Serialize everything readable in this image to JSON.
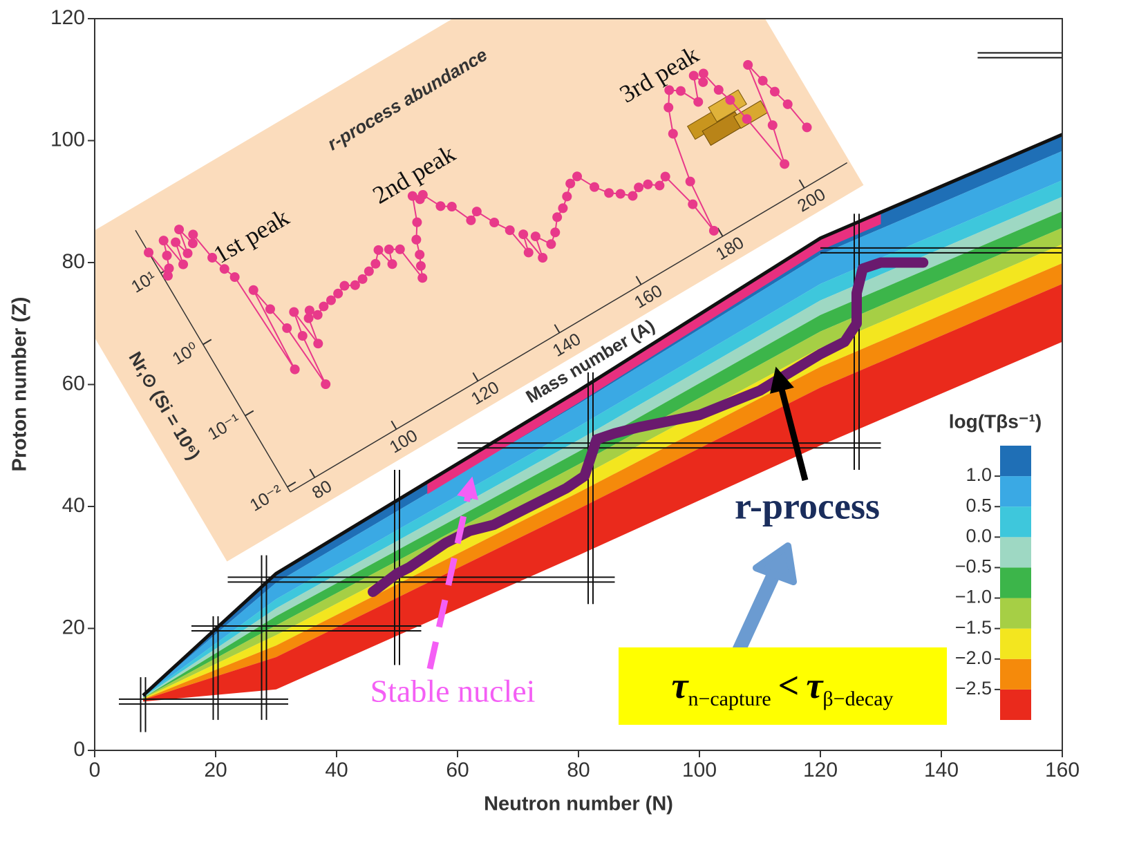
{
  "chart_data": {
    "type": "nuclide-chart",
    "xlabel": "Neutron number (N)",
    "ylabel": "Proton number (Z)",
    "xlim": [
      0,
      160
    ],
    "ylim": [
      0,
      120
    ],
    "xticks": [
      0,
      20,
      40,
      60,
      80,
      100,
      120,
      140,
      160
    ],
    "yticks": [
      0,
      20,
      40,
      60,
      80,
      100,
      120
    ],
    "regions": [
      {
        "color": "#1f6fb6",
        "N": [
          8,
          30,
          80,
          120,
          160,
          160,
          120,
          80,
          30,
          8
        ],
        "Z": [
          9,
          29,
          59,
          84,
          101,
          98.3,
          81.3,
          56.8,
          27.5,
          8.9
        ]
      },
      {
        "color": "#3aa9e4",
        "N": [
          8,
          30,
          80,
          120,
          160,
          160,
          120,
          80,
          30,
          8
        ],
        "Z": [
          8.9,
          27.5,
          56.8,
          81.3,
          98.3,
          93.5,
          76.5,
          53.1,
          24.8,
          8.8
        ]
      },
      {
        "color": "#3ec7dc",
        "N": [
          8,
          30,
          80,
          120,
          160,
          160,
          120,
          80,
          30,
          8
        ],
        "Z": [
          8.8,
          24.8,
          53.1,
          76.5,
          93.5,
          90.8,
          73.8,
          50.9,
          23.3,
          8.7
        ]
      },
      {
        "color": "#9ed8c3",
        "N": [
          8,
          30,
          80,
          120,
          160,
          160,
          120,
          80,
          30,
          8
        ],
        "Z": [
          8.7,
          23.3,
          50.9,
          73.8,
          90.8,
          88.4,
          71.4,
          49,
          22,
          8.6
        ]
      },
      {
        "color": "#3cb54a",
        "N": [
          8,
          30,
          80,
          120,
          160,
          160,
          120,
          80,
          30,
          8
        ],
        "Z": [
          8.6,
          22,
          49,
          71.4,
          88.4,
          85.7,
          68.7,
          46.9,
          20.5,
          8.6
        ]
      },
      {
        "color": "#a6cf45",
        "N": [
          8,
          30,
          80,
          120,
          160,
          160,
          120,
          80,
          30,
          8
        ],
        "Z": [
          8.6,
          20.5,
          46.9,
          68.7,
          85.7,
          83,
          66,
          44.7,
          18.9,
          8.5
        ]
      },
      {
        "color": "#f3e61f",
        "N": [
          8,
          30,
          80,
          120,
          160,
          160,
          120,
          80,
          30,
          8
        ],
        "Z": [
          8.5,
          18.9,
          44.7,
          66,
          83,
          79.9,
          62.9,
          42.3,
          17.2,
          8.4
        ]
      },
      {
        "color": "#f58a0b",
        "N": [
          8,
          30,
          80,
          120,
          160,
          160,
          120,
          80,
          30,
          8
        ],
        "Z": [
          8.4,
          17.2,
          42.3,
          62.9,
          79.9,
          76.5,
          59.5,
          39.6,
          15.3,
          8.3
        ]
      },
      {
        "color": "#ea2a1c",
        "N": [
          8,
          30,
          80,
          120,
          160,
          160,
          120,
          80,
          30,
          8
        ],
        "Z": [
          8.3,
          15.3,
          39.6,
          59.5,
          76.5,
          67,
          50,
          32,
          10,
          8
        ]
      },
      {
        "color": "#e8307f",
        "N": [
          55,
          80,
          120,
          130,
          130,
          120,
          80,
          55
        ],
        "Z": [
          44,
          59,
          84,
          88.3,
          86.3,
          82,
          57,
          42
        ]
      }
    ],
    "magic_N": [
      {
        "value": 8,
        "span": [
          3,
          12
        ]
      },
      {
        "value": 20,
        "span": [
          5,
          22
        ]
      },
      {
        "value": 28,
        "span": [
          5,
          32
        ]
      },
      {
        "value": 50,
        "span": [
          14,
          46
        ]
      },
      {
        "value": 82,
        "span": [
          24,
          62
        ]
      },
      {
        "value": 126,
        "span": [
          46,
          88
        ]
      }
    ],
    "magic_Z": [
      {
        "value": 8,
        "span": [
          4,
          32
        ]
      },
      {
        "value": 20,
        "span": [
          16,
          54
        ]
      },
      {
        "value": 28,
        "span": [
          22,
          86
        ]
      },
      {
        "value": 50,
        "span": [
          60,
          130
        ]
      },
      {
        "value": 82,
        "span": [
          120,
          160
        ]
      },
      {
        "value": 114,
        "span": [
          146,
          160
        ]
      }
    ],
    "r_process_path": {
      "color": "#6a1a6e",
      "N": [
        46,
        50,
        52,
        55,
        58,
        62,
        66,
        70,
        74,
        78,
        81,
        82,
        83,
        86,
        90,
        95,
        100,
        105,
        110,
        115,
        120,
        124,
        126,
        126,
        127,
        130,
        137
      ],
      "Z": [
        26,
        29,
        30,
        32,
        34,
        36,
        37,
        39,
        41,
        43,
        45,
        48,
        51,
        52,
        53,
        54,
        55,
        57,
        59,
        62,
        65,
        67,
        70,
        75,
        79,
        80,
        80
      ]
    },
    "colorbar": {
      "title": "log(Tβs⁻¹)",
      "clim": [
        -3,
        1.5
      ],
      "ticks": [
        {
          "value": -2.5,
          "label": "−2.5"
        },
        {
          "value": -2,
          "label": "−2.0"
        },
        {
          "value": -1.5,
          "label": "−1.5"
        },
        {
          "value": -1,
          "label": "−1.0"
        },
        {
          "value": -0.5,
          "label": "−0.5"
        },
        {
          "value": 0,
          "label": "0.0"
        },
        0.5,
        {
          "value": 1,
          "label": "1.0"
        }
      ],
      "colors": [
        "#ea2a1c",
        "#f58a0b",
        "#f3e61f",
        "#a6cf45",
        "#3cb54a",
        "#9ed8c3",
        "#3ec7dc",
        "#3aa9e4",
        "#1f6fb6"
      ]
    },
    "annotations": {
      "r_process": "r-process",
      "stable": "Stable nuclei",
      "condition": {
        "left": "τ",
        "left_sub": "n−capture",
        "op": "<",
        "right": "τ",
        "right_sub": "β−decay"
      }
    },
    "inset": {
      "type": "line",
      "title": "r-process abundance",
      "xlabel": "Mass number (A)",
      "ylabel": "Nr,⊙ (Si = 10⁶)",
      "color": "#e8398a",
      "log_y": true,
      "xlim": [
        74,
        210.5
      ],
      "ylim": [
        0.0085,
        40
      ],
      "xticks": [
        80,
        100,
        120,
        140,
        160,
        180,
        200
      ],
      "yticks": [
        {
          "value": 0.01,
          "label": "10⁻²"
        },
        {
          "value": 0.1,
          "label": "10⁻¹"
        },
        {
          "value": 1,
          "label": "10⁰"
        },
        {
          "value": 10,
          "label": "10¹"
        }
      ],
      "peaks": [
        "1st peak",
        "2nd peak",
        "3rd peak"
      ],
      "x": [
        74,
        75,
        76,
        77,
        78,
        79,
        80,
        81,
        82,
        83,
        84,
        85,
        86,
        87,
        88,
        89,
        90,
        91,
        92,
        93,
        94,
        95,
        96,
        97,
        98,
        100,
        102,
        104,
        106,
        108,
        110,
        112,
        114,
        116,
        117,
        118,
        120,
        121,
        122,
        123,
        124,
        126,
        128,
        129,
        130,
        132,
        134,
        136,
        138,
        140,
        142,
        143,
        144,
        145,
        146,
        148,
        150,
        152,
        154,
        156,
        158,
        160,
        162,
        164,
        166,
        168,
        170,
        172,
        174,
        176,
        178,
        179,
        180,
        182,
        184,
        186,
        188,
        190,
        192,
        193,
        194,
        195,
        196,
        197,
        199,
        201,
        203,
        204,
        205,
        206,
        207
      ],
      "values": [
        19.5,
        8.5,
        10,
        14,
        21,
        9,
        17,
        11,
        22,
        13,
        16,
        7,
        4.5,
        3.2,
        0.15,
        1.8,
        0.9,
        0.45,
        0.068,
        0.3,
        0.6,
        0.2,
        0.42,
        0.5,
        0.4,
        0.45,
        0.47,
        0.5,
        0.55,
        0.48,
        0.5,
        0.55,
        0.6,
        0.8,
        0.47,
        0.7,
        0.6,
        0.22,
        0.3,
        0.4,
        0.6,
        0.9,
        1.8,
        1.5,
        1.6,
        0.95,
        0.8,
        0.44,
        0.5,
        0.3,
        0.2,
        0.09,
        0.15,
        0.065,
        0.12,
        0.08,
        0.1,
        0.14,
        0.16,
        0.2,
        0.26,
        0.28,
        0.17,
        0.12,
        0.1,
        0.08,
        0.09,
        0.085,
        0.07,
        0.08,
        0.028,
        0.011,
        0.05,
        0.2,
        0.4,
        0.6,
        0.5,
        0.3,
        0.6,
        0.45,
        0.55,
        0.3,
        0.2,
        0.1,
        0.02,
        0.06,
        0.36,
        0.2,
        0.13,
        0.08,
        0.035
      ]
    }
  }
}
